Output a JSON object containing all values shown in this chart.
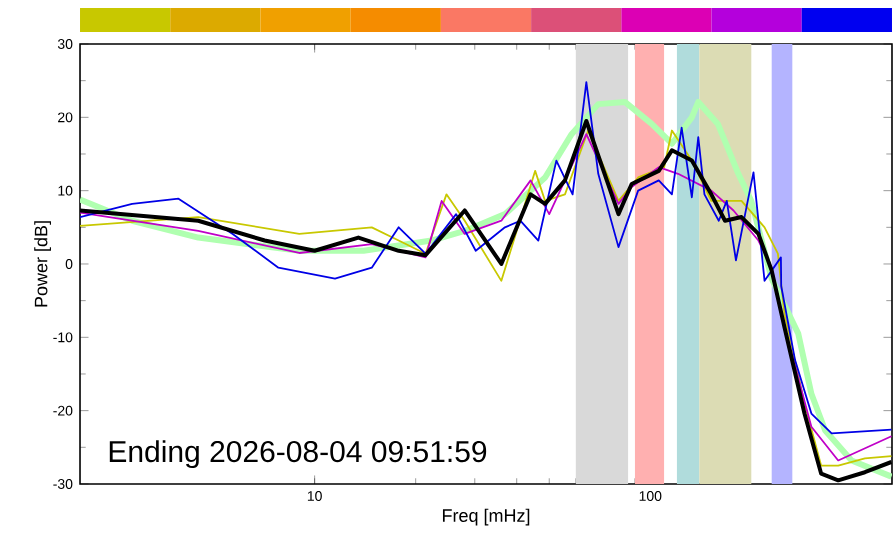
{
  "chart_data": {
    "type": "line",
    "xlabel": "Freq [mHz]",
    "ylabel": "Power [dB]",
    "log": "x",
    "xlim": [
      2,
      525
    ],
    "xticks": [
      10,
      100
    ],
    "ylim": [
      -30,
      30
    ],
    "yticks": [
      -30,
      -20,
      -10,
      0,
      10,
      20,
      30
    ],
    "annotations": [
      "Ending 2026-08-04 09:51:59"
    ],
    "bands": [
      {
        "axis": "x",
        "from": 60,
        "to": 86,
        "color": "#d9d9d9"
      },
      {
        "axis": "x",
        "from": 90,
        "to": 110,
        "color": "#ffb0b0"
      },
      {
        "axis": "x",
        "from": 120,
        "to": 140,
        "color": "#b0dcdc"
      },
      {
        "axis": "x",
        "from": 140,
        "to": 200,
        "color": "#dcdcb4"
      },
      {
        "axis": "x",
        "from": 230,
        "to": 265,
        "color": "#b4b4ff"
      }
    ],
    "series": [
      {
        "color": "#b0ffb0",
        "x": [
          2,
          2.86,
          4.5,
          9,
          14,
          22.3,
          28,
          36.9,
          48.6,
          58.3,
          70,
          84,
          101,
          116,
          133,
          139,
          159,
          183,
          200,
          230,
          276,
          302,
          332,
          398,
          523
        ],
        "values": [
          8.8,
          5.9,
          3.6,
          1.8,
          1.8,
          3.2,
          4.5,
          6.8,
          11.8,
          17.7,
          21.8,
          22.1,
          19.1,
          16.4,
          20,
          22.1,
          19.1,
          12.3,
          8.6,
          -2,
          -9.5,
          -17.7,
          -22.7,
          -26.8,
          -29
        ]
      },
      {
        "color": "#c8c800",
        "x": [
          2,
          4.5,
          9,
          14.8,
          17.8,
          21.4,
          24.7,
          28,
          36,
          45.4,
          48.6,
          55.7,
          65.3,
          80.4,
          92,
          110,
          116,
          133,
          152,
          187,
          219,
          240,
          251,
          288,
          323,
          363,
          436,
          523
        ],
        "values": [
          5.2,
          6.4,
          4.1,
          5,
          3.2,
          1.4,
          9.5,
          5.9,
          -2.3,
          12.7,
          8.6,
          9.5,
          18.2,
          8.6,
          11.8,
          13.2,
          18.2,
          14.1,
          8.6,
          8.6,
          5,
          1.4,
          -6.8,
          -19,
          -27.5,
          -27.5,
          -26.5,
          -26.2
        ]
      },
      {
        "color": "#c000c8",
        "x": [
          2,
          4.5,
          9,
          14.8,
          21.4,
          23.9,
          28,
          36,
          44,
          50,
          64.5,
          80.4,
          88,
          106,
          121,
          152,
          177,
          210,
          230,
          251,
          302,
          363,
          523
        ],
        "values": [
          7,
          4.5,
          1.5,
          2.7,
          0.9,
          8.6,
          4.1,
          5.9,
          11.4,
          6.8,
          17.7,
          8.2,
          10.5,
          13.2,
          12.3,
          10,
          7.3,
          3.2,
          -0.5,
          -8.6,
          -22.2,
          -26.8,
          -23.5
        ]
      },
      {
        "color": "#0000e6",
        "x": [
          2,
          2.86,
          3.93,
          5.7,
          7.8,
          11.5,
          14.8,
          17.8,
          21.4,
          26.4,
          30.2,
          36.9,
          41,
          46.4,
          52.5,
          58.7,
          64.5,
          70,
          80.4,
          92,
          106,
          116,
          124,
          133,
          139,
          145,
          160,
          169,
          180,
          194,
          203,
          219,
          245,
          245.5,
          270,
          302,
          347,
          523
        ],
        "values": [
          6.4,
          8.2,
          8.9,
          4.1,
          -0.5,
          -2,
          -0.5,
          5,
          1.4,
          6.8,
          1.8,
          5,
          5.9,
          3.2,
          14.1,
          9.5,
          24.8,
          12.3,
          2.3,
          10,
          11.4,
          9.5,
          18.6,
          9.1,
          17.3,
          9.5,
          5.9,
          8.6,
          0.5,
          8,
          12.5,
          -2.3,
          0.9,
          -3,
          -13.1,
          -20.4,
          -23.1,
          -22.6
        ]
      },
      {
        "color": "#000000",
        "x": [
          2,
          4.5,
          7.1,
          10,
          13.5,
          17.8,
          21.4,
          28,
          36,
          44,
          48.6,
          55.7,
          64.5,
          80.4,
          88,
          106,
          116,
          133,
          152,
          167,
          187,
          210,
          230,
          251,
          288,
          323,
          363,
          436,
          523
        ],
        "values": [
          7.3,
          5.9,
          3.2,
          1.8,
          3.6,
          1.8,
          1.2,
          7.3,
          0,
          9.5,
          8.2,
          11.4,
          19.5,
          6.8,
          10.9,
          12.7,
          15.5,
          14.1,
          9.5,
          5.9,
          6.4,
          4.1,
          -0.9,
          -8.6,
          -20.4,
          -28.6,
          -29.5,
          -28.4,
          -27
        ]
      }
    ]
  }
}
